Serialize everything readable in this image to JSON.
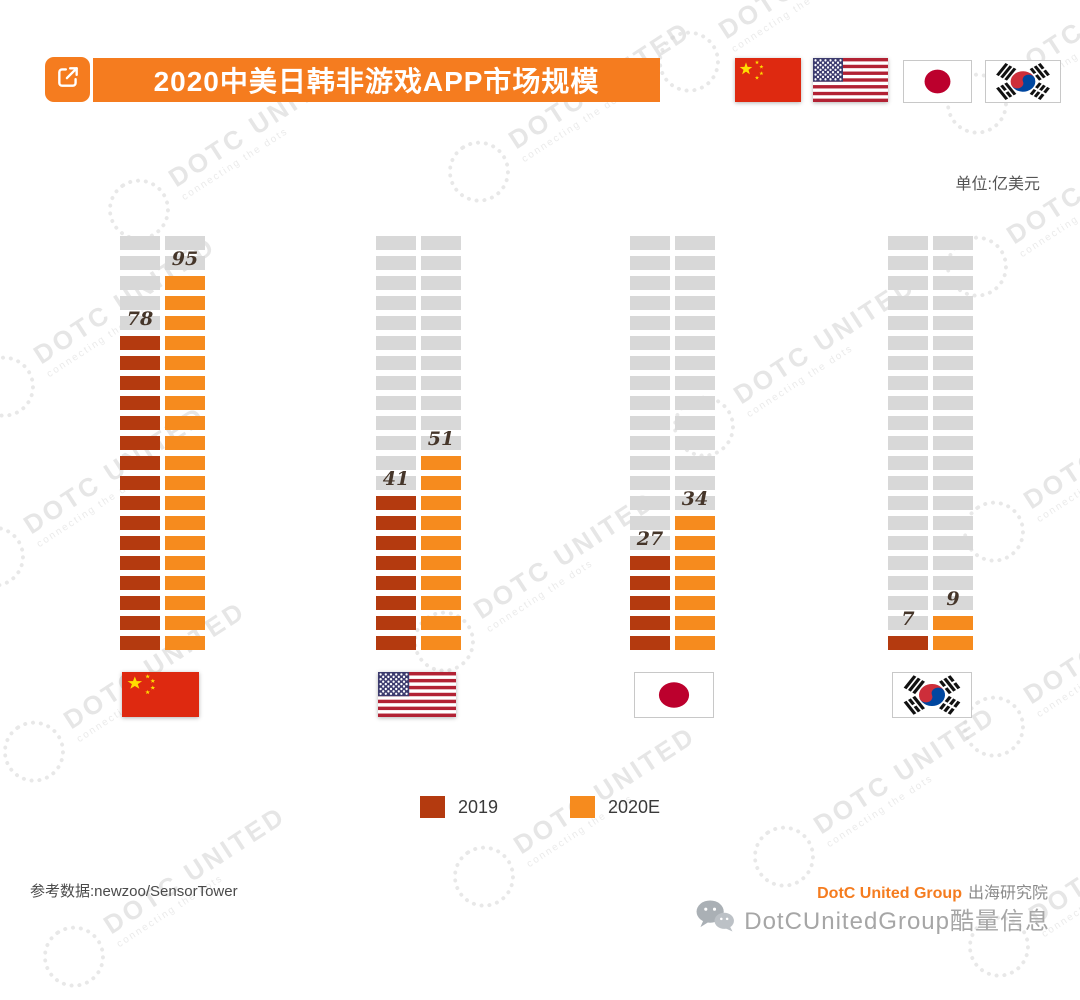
{
  "header": {
    "title": "2020中美日韩非游戏APP市场规模",
    "accent_color": "#f57c1f",
    "flags": [
      "中国",
      "美国",
      "日本",
      "韩国"
    ]
  },
  "unit_label": "单位:亿美元",
  "chart_data": {
    "type": "bar",
    "style": "segmented-brick-columns",
    "title": "2020中美日韩非游戏APP市场规模",
    "categories": [
      "中国",
      "美国",
      "日本",
      "韩国"
    ],
    "series": [
      {
        "name": "2019",
        "color": "#b43a0f",
        "values": [
          78,
          41,
          27,
          7
        ]
      },
      {
        "name": "2020E",
        "color": "#f68b1e",
        "values": [
          95,
          51,
          34,
          9
        ]
      }
    ],
    "unit": "亿美元",
    "ylim": [
      0,
      105
    ],
    "bricks_per_column": 21,
    "brick_value": 5,
    "placeholder_color": "#d8d8d8",
    "legend_position": "bottom",
    "grid": false
  },
  "legend": {
    "items": [
      {
        "label": "2019",
        "color": "#b43a0f"
      },
      {
        "label": "2020E",
        "color": "#f68b1e"
      }
    ]
  },
  "footer": {
    "source": "参考数据:newzoo/SensorTower",
    "brand_primary": "DotC United Group",
    "brand_secondary": "出海研究院",
    "wechat_name": "DotCUnitedGroup酷量信息"
  },
  "watermark": {
    "line1": "DOTC UNITED",
    "line2": "connecting the dots"
  }
}
